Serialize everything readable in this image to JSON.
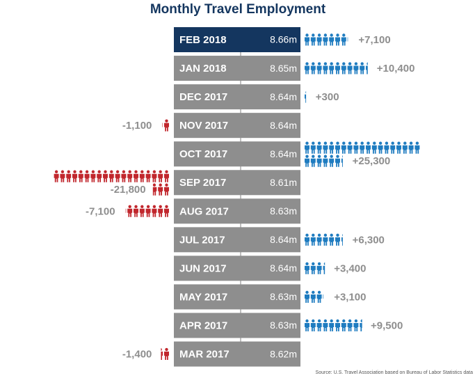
{
  "chart_data": {
    "type": "pictograph",
    "title": "Monthly Travel Employment",
    "categories": [
      "FEB 2018",
      "JAN 2018",
      "DEC 2017",
      "NOV 2017",
      "OCT 2017",
      "SEP 2017",
      "AUG 2017",
      "JUL 2017",
      "JUN 2017",
      "MAY 2017",
      "APR 2017",
      "MAR 2017"
    ],
    "levels": {
      "values": [
        8.66,
        8.65,
        8.64,
        8.64,
        8.64,
        8.61,
        8.63,
        8.64,
        8.64,
        8.63,
        8.63,
        8.62
      ],
      "value_labels": [
        "8.66m",
        "8.65m",
        "8.64m",
        "8.64m",
        "8.64m",
        "8.61m",
        "8.63m",
        "8.64m",
        "8.64m",
        "8.63m",
        "8.63m",
        "8.62m"
      ]
    },
    "changes": {
      "values": [
        7100,
        10400,
        300,
        -1100,
        25300,
        -21800,
        -7100,
        6300,
        3400,
        3100,
        9500,
        -1400
      ],
      "value_labels": [
        "+7,100",
        "+10,400",
        "+300",
        "-1,100",
        "+25,300",
        "-21,800",
        "-7,100",
        "+6,300",
        "+3,400",
        "+3,100",
        "+9,500",
        "-1,400"
      ]
    },
    "bar_colors": [
      "#14365f",
      "#8e8e8e",
      "#8e8e8e",
      "#8e8e8e",
      "#8e8e8e",
      "#8e8e8e",
      "#8e8e8e",
      "#8e8e8e",
      "#8e8e8e",
      "#8e8e8e",
      "#8e8e8e",
      "#8e8e8e"
    ],
    "positive_color": "#1f7cc0",
    "negative_color": "#c1272d",
    "source": "Source: U.S. Travel Association based on Bureau of Labor Statistics data"
  }
}
